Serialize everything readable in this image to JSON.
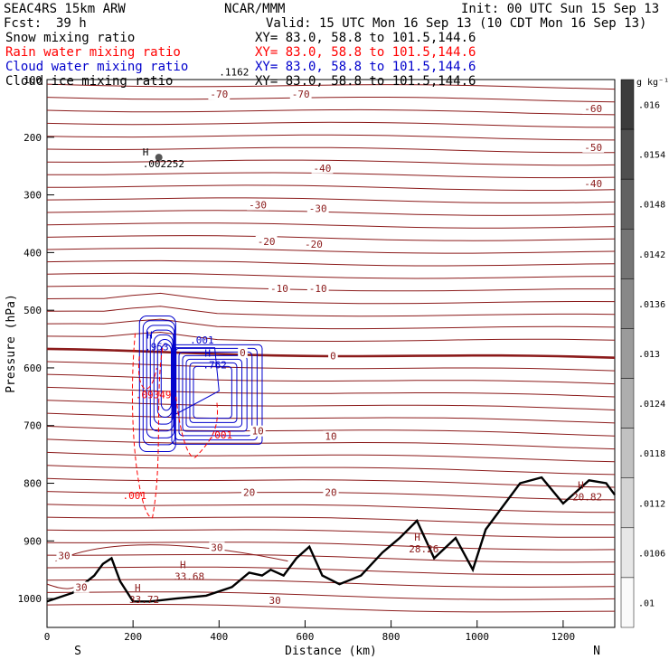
{
  "header": {
    "model": "SEAC4RS 15km ARW",
    "org": "NCAR/MMM",
    "init": "Init: 00 UTC Sun 15 Sep 13",
    "fcst_label": "Fcst:",
    "fcst_value": "39 h",
    "valid": "Valid: 15 UTC Mon 16 Sep 13 (10 CDT Mon 16 Sep 13)"
  },
  "legend": [
    {
      "name": "Snow mixing ratio",
      "xy": "XY=  83.0, 58.8 to 101.5,144.6",
      "color": "#000000"
    },
    {
      "name": "Rain water mixing ratio",
      "xy": "XY=  83.0, 58.8 to 101.5,144.6",
      "color": "#ff0000"
    },
    {
      "name": "Cloud water mixing ratio",
      "xy": "XY=  83.0, 58.8 to 101.5,144.6",
      "color": "#0000cc"
    },
    {
      "name": "Cloud ice mixing ratio",
      "xy": "XY=  83.0, 58.8 to 101.5,144.6",
      "color": "#000000"
    }
  ],
  "colorbar": {
    "unit": "g kg⁻¹",
    "ticks": [
      ".016",
      ".0154",
      ".0148",
      ".0142",
      ".0136",
      ".013",
      ".0124",
      ".0118",
      ".0112",
      ".0106",
      ".01"
    ]
  },
  "colors": {
    "temperature": "#8b1a1a",
    "rain": "#ff0000",
    "cloud": "#0000cc",
    "terrain": "#000000"
  },
  "chart_data": {
    "type": "line",
    "xlabel": "Distance (km)",
    "ylabel": "Pressure (hPa)",
    "xlim": [
      0,
      1320
    ],
    "ylim": [
      1050,
      100
    ],
    "x_ticks": [
      "0",
      "200",
      "400",
      "600",
      "800",
      "1000",
      "1200"
    ],
    "y_ticks": [
      "100",
      "200",
      "300",
      "400",
      "500",
      "600",
      "700",
      "800",
      "900",
      "1000"
    ],
    "x_ends": {
      "left": "S",
      "right": "N"
    },
    "temperature_isotherms_c": [
      -70,
      -60,
      -50,
      -40,
      -30,
      -20,
      -10,
      0,
      10,
      20,
      30
    ],
    "temperature_labels": [
      {
        "text": "-70",
        "x": 400,
        "p": 130
      },
      {
        "text": "-70",
        "x": 590,
        "p": 130
      },
      {
        "text": "-60",
        "x": 1270,
        "p": 155
      },
      {
        "text": "-50",
        "x": 1270,
        "p": 222
      },
      {
        "text": "-40",
        "x": 640,
        "p": 258
      },
      {
        "text": "-40",
        "x": 1270,
        "p": 285
      },
      {
        "text": "-30",
        "x": 490,
        "p": 322
      },
      {
        "text": "-30",
        "x": 630,
        "p": 328
      },
      {
        "text": "-20",
        "x": 510,
        "p": 385
      },
      {
        "text": "-20",
        "x": 620,
        "p": 390
      },
      {
        "text": "-10",
        "x": 540,
        "p": 467
      },
      {
        "text": "-10",
        "x": 630,
        "p": 467
      },
      {
        "text": "0",
        "x": 455,
        "p": 578
      },
      {
        "text": "0",
        "x": 665,
        "p": 584
      },
      {
        "text": "10",
        "x": 490,
        "p": 714
      },
      {
        "text": "10",
        "x": 660,
        "p": 723
      },
      {
        "text": "20",
        "x": 470,
        "p": 820
      },
      {
        "text": "20",
        "x": 660,
        "p": 820
      },
      {
        "text": "30",
        "x": 40,
        "p": 930
      },
      {
        "text": "30",
        "x": 395,
        "p": 916
      },
      {
        "text": "30",
        "x": 80,
        "p": 985
      },
      {
        "text": "30",
        "x": 530,
        "p": 1008
      }
    ],
    "terrain_profile_hpa": {
      "x": [
        0,
        60,
        110,
        130,
        150,
        170,
        200,
        240,
        300,
        370,
        430,
        470,
        500,
        520,
        550,
        580,
        610,
        640,
        680,
        730,
        780,
        820,
        860,
        900,
        950,
        990,
        1020,
        1060,
        1100,
        1150,
        1200,
        1260,
        1300,
        1320
      ],
      "p": [
        1005,
        990,
        960,
        940,
        930,
        970,
        1005,
        1005,
        1000,
        995,
        980,
        955,
        960,
        950,
        960,
        930,
        910,
        960,
        975,
        960,
        920,
        895,
        865,
        930,
        895,
        950,
        880,
        840,
        800,
        790,
        835,
        795,
        800,
        820
      ]
    },
    "pressure_maxima": [
      {
        "label": "H",
        "value": "33.72",
        "x": 225,
        "p": 1003
      },
      {
        "label": "H",
        "value": "33.68",
        "x": 330,
        "p": 963
      },
      {
        "label": "H",
        "value": "28.26",
        "x": 875,
        "p": 915
      },
      {
        "label": "H",
        "value": "20.82",
        "x": 1255,
        "p": 825
      }
    ],
    "cloud_ice_max": {
      "label": "H",
      "value": ".002252",
      "x": 260,
      "p": 238
    },
    "cloud_water_max": [
      {
        "label": "H",
        "value": ".953",
        "x": 240,
        "p": 565
      },
      {
        "label": "H",
        "value": ".762",
        "x": 375,
        "p": 596
      },
      {
        "label": "",
        "value": ".001",
        "x": 345,
        "p": 553
      }
    ],
    "rain_water_labels": [
      {
        "label": "",
        "value": ".09349",
        "x": 235,
        "p": 648
      },
      {
        "label": "",
        "value": ".001",
        "x": 405,
        "p": 718
      },
      {
        "label": "",
        "value": ".001",
        "x": 205,
        "p": 823
      }
    ],
    "top_label": {
      "value": ".1162",
      "x": 400,
      "p": 93
    }
  }
}
